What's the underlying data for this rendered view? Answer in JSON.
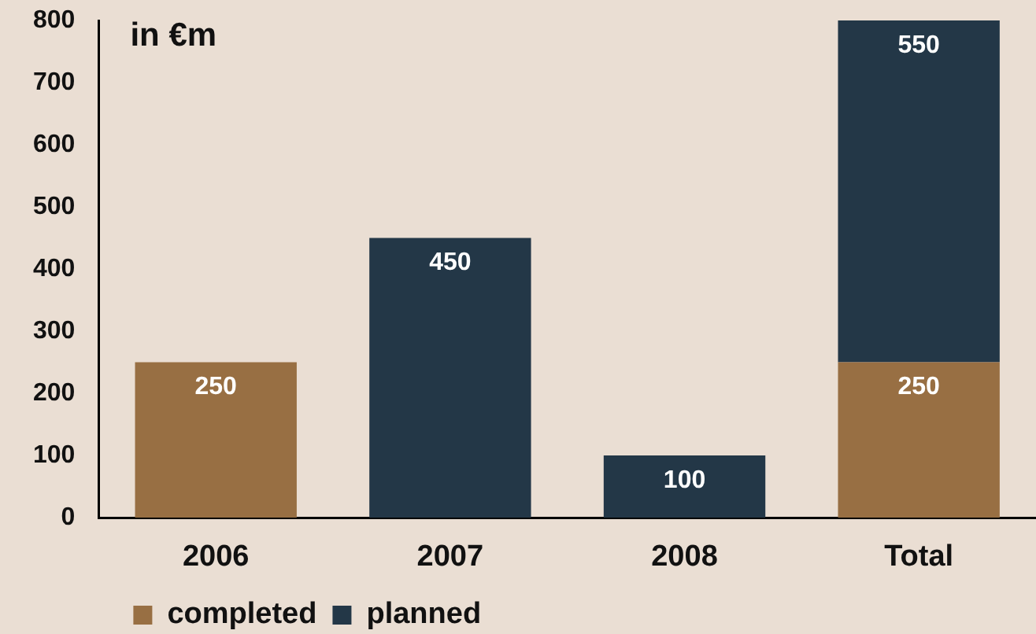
{
  "chart_data": {
    "type": "bar",
    "ylabel": "in €m",
    "categories": [
      "2006",
      "2007",
      "2008",
      "Total"
    ],
    "stacked": true,
    "series": [
      {
        "name": "completed",
        "color": "#986f43",
        "values": [
          250,
          null,
          null,
          250
        ]
      },
      {
        "name": "planned",
        "color": "#233747",
        "values": [
          null,
          450,
          100,
          550
        ]
      }
    ],
    "ylim": [
      0,
      800
    ],
    "yticks": [
      0,
      100,
      200,
      300,
      400,
      500,
      600,
      700,
      800
    ],
    "data_labels": true,
    "legend": "bottom left"
  }
}
